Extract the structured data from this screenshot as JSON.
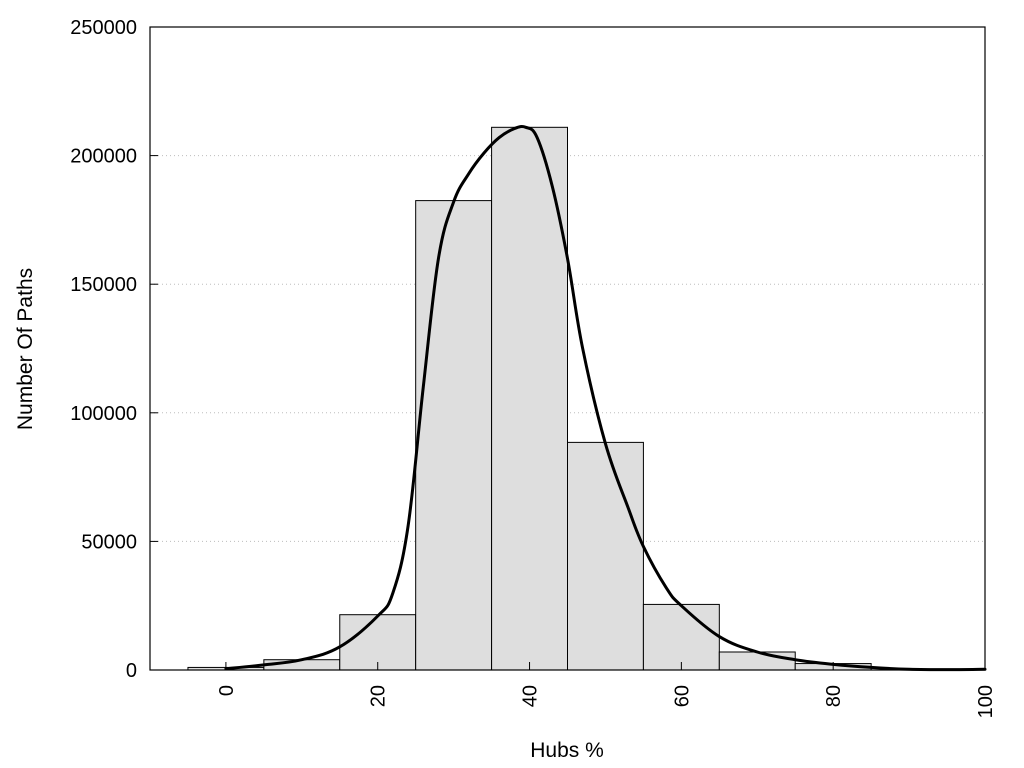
{
  "chart_data": {
    "type": "bar",
    "xlabel": "Hubs %",
    "ylabel": "Number Of Paths",
    "xlim": [
      -10,
      100
    ],
    "ylim": [
      0,
      250000
    ],
    "x_ticks": [
      0,
      20,
      40,
      60,
      80,
      100
    ],
    "y_ticks": [
      0,
      50000,
      100000,
      150000,
      200000,
      250000
    ],
    "bin_width": 10,
    "bins": [
      {
        "center": 0,
        "value": 1000
      },
      {
        "center": 10,
        "value": 4000
      },
      {
        "center": 20,
        "value": 21500
      },
      {
        "center": 30,
        "value": 182500
      },
      {
        "center": 40,
        "value": 211000
      },
      {
        "center": 50,
        "value": 88500
      },
      {
        "center": 60,
        "value": 25500
      },
      {
        "center": 70,
        "value": 7000
      },
      {
        "center": 80,
        "value": 2500
      }
    ],
    "curve": {
      "x": [
        0,
        5,
        10,
        15,
        20,
        22,
        24,
        26,
        28,
        30,
        32,
        34,
        36,
        38,
        39.5,
        41,
        43,
        45,
        47,
        50,
        53,
        55,
        58,
        60,
        65,
        70,
        75,
        80,
        85,
        90,
        95,
        100
      ],
      "y": [
        500,
        2000,
        4000,
        9000,
        21000,
        30000,
        56000,
        110000,
        160000,
        182000,
        193000,
        201000,
        207000,
        210500,
        211000,
        207000,
        188000,
        160000,
        125000,
        88000,
        63000,
        48000,
        32000,
        25000,
        13000,
        7000,
        4000,
        2200,
        1000,
        300,
        150,
        300
      ]
    },
    "grid": true,
    "bar_color": "#dedede",
    "curve_color": "#000000"
  }
}
